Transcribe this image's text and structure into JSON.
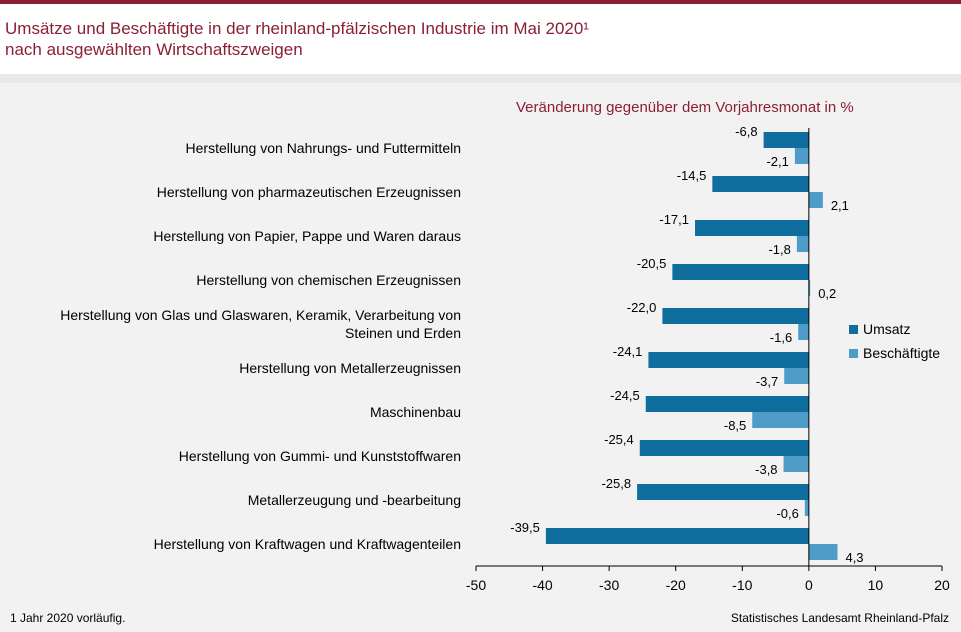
{
  "header": {
    "title": "Umsätze und Beschäftigte in der rheinland-pfälzischen Industrie im Mai 2020¹",
    "subtitle": "nach ausgewählten Wirtschaftszweigen"
  },
  "footer": {
    "footnote": "1 Jahr 2020 vorläufig.",
    "source": "Statistisches Landesamt Rheinland-Pfalz"
  },
  "chart_data": {
    "type": "bar",
    "orientation": "horizontal",
    "unit_label": "Veränderung gegenüber dem Vorjahresmonat in %",
    "categories": [
      "Herstellung von Nahrungs- und Futtermitteln",
      "Herstellung von pharmazeutischen Erzeugnissen",
      "Herstellung von Papier, Pappe und Waren daraus",
      "Herstellung von chemischen Erzeugnissen",
      "Herstellung von Glas und Glaswaren, Keramik, Verarbeitung von Steinen und Erden",
      "Herstellung von Metallerzeugnissen",
      "Maschinenbau",
      "Herstellung von Gummi- und Kunststoffwaren",
      "Metallerzeugung und -bearbeitung",
      "Herstellung von Kraftwagen und Kraftwagenteilen"
    ],
    "series": [
      {
        "name": "Umsatz",
        "color": "#0f6e9e",
        "values": [
          -6.8,
          -14.5,
          -17.1,
          -20.5,
          -22.0,
          -24.1,
          -24.5,
          -25.4,
          -25.8,
          -39.5
        ]
      },
      {
        "name": "Beschäftigte",
        "color": "#4e9cc7",
        "values": [
          -2.1,
          2.1,
          -1.8,
          0.2,
          -1.6,
          -3.7,
          -8.5,
          -3.8,
          -0.6,
          4.3
        ]
      }
    ],
    "xlim": [
      -50,
      20
    ],
    "xticks": [
      -50,
      -40,
      -30,
      -20,
      -10,
      0,
      10,
      20
    ],
    "grid": false,
    "legend_position": "right"
  }
}
